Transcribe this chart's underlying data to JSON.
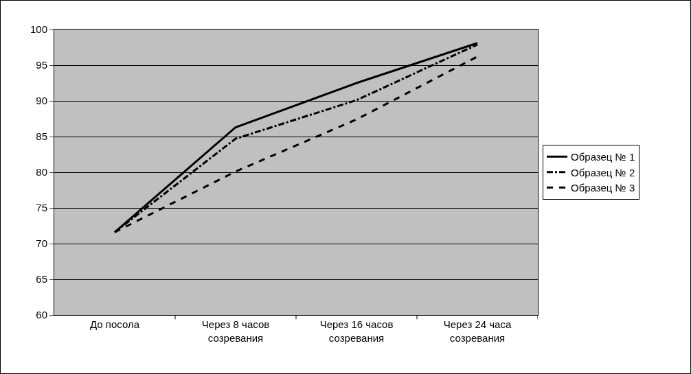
{
  "chart_data": {
    "type": "line",
    "categories": [
      "До посола",
      "Через 8 часов созревания",
      "Через 16 часов созревания",
      "Через 24 часа созревания"
    ],
    "series": [
      {
        "name": "Образец № 1",
        "color": "#000000",
        "line_style": "solid",
        "values": [
          71.6,
          86.3,
          92.5,
          98.1
        ]
      },
      {
        "name": "Образец № 2",
        "color": "#000000",
        "line_style": "dashed",
        "values": [
          71.6,
          84.7,
          90.1,
          97.9
        ]
      },
      {
        "name": "Образец № 3",
        "color": "#000000",
        "line_style": "dotted",
        "values": [
          71.6,
          80.1,
          87.4,
          96.2
        ]
      }
    ],
    "ylim": [
      60,
      100
    ],
    "yticks": [
      60,
      65,
      70,
      75,
      80,
      85,
      90,
      95,
      100
    ],
    "grid": "y",
    "legend": "right",
    "marker": "none"
  }
}
